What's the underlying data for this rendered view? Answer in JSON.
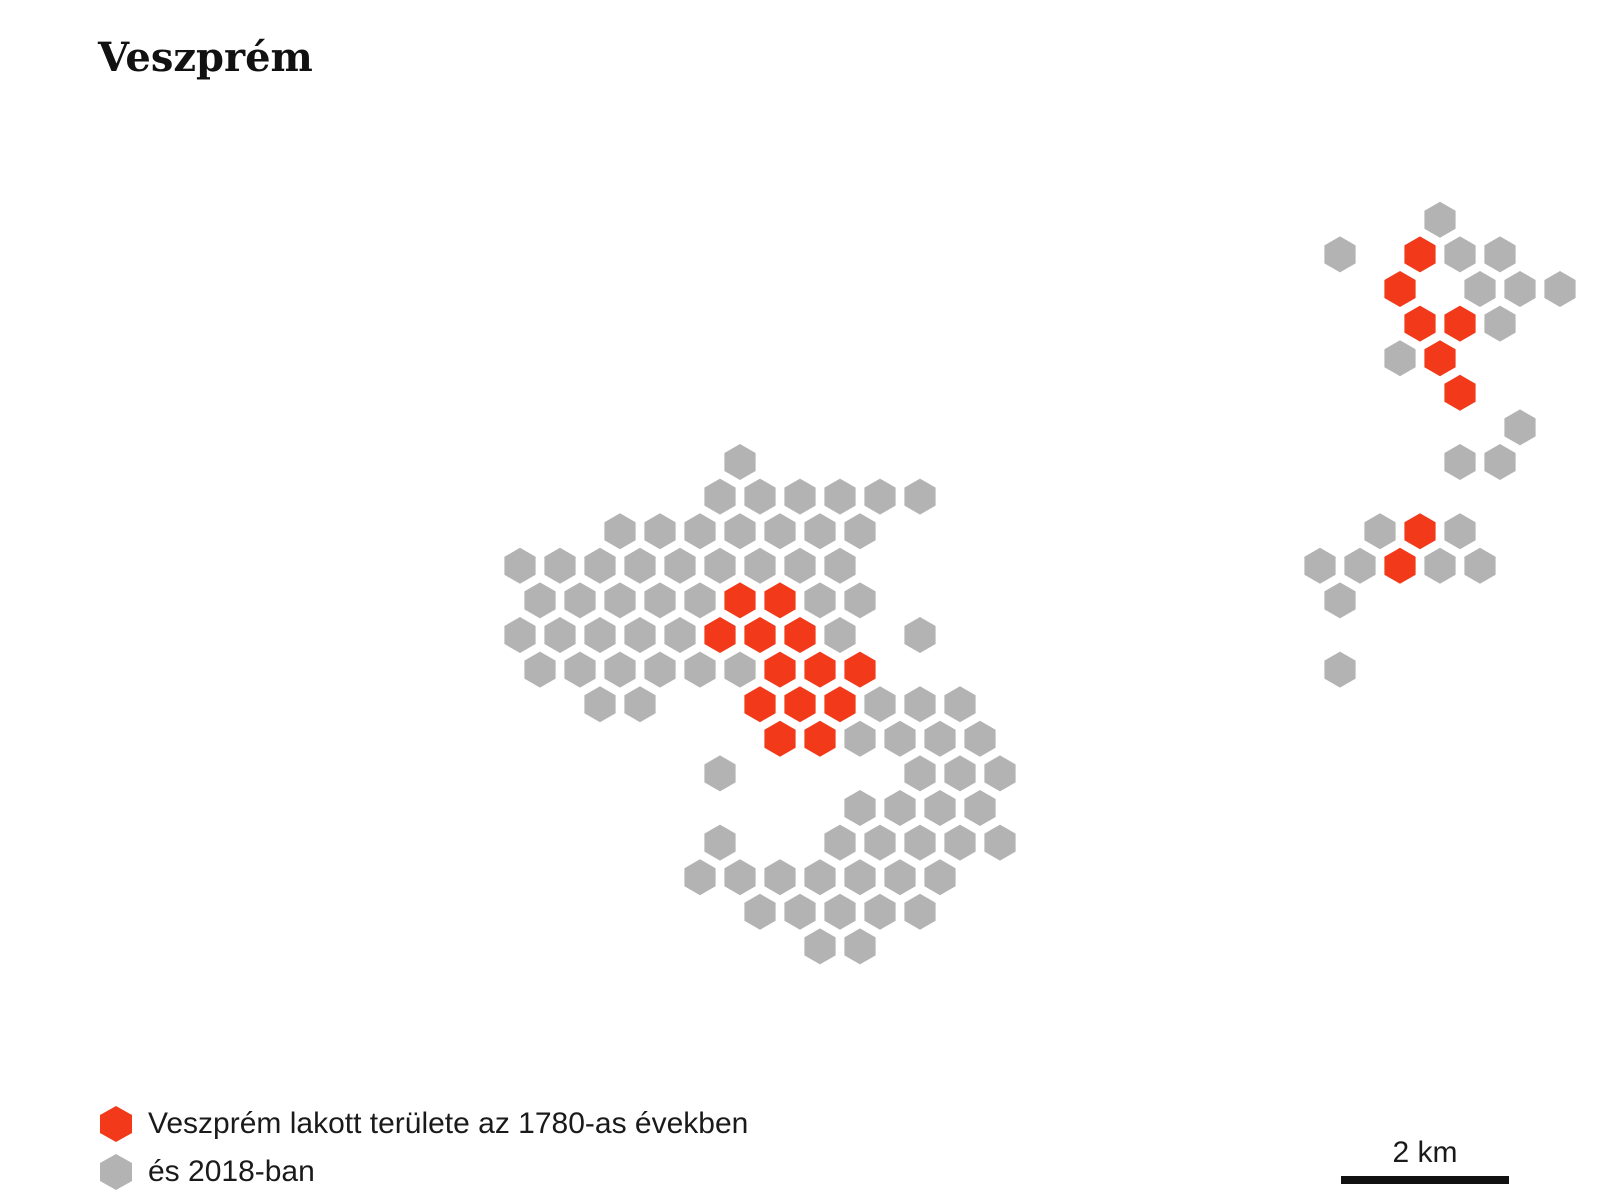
{
  "title": "Veszprém",
  "colors": {
    "settled_1780s": "#f2391a",
    "settled_2018": "#b3b3b3",
    "text": "#1a1a1a"
  },
  "legend": {
    "settled_1780s": "Veszprém lakott területe az 1780-as években",
    "settled_2018": "és 2018-ban"
  },
  "scale": {
    "label": "2 km"
  },
  "chart_data": {
    "type": "hexbin-map",
    "note_units": "cells indexed by hex grid column (col) and row (row)",
    "red_cells": [
      [
        24,
        4
      ],
      [
        23,
        5
      ],
      [
        24,
        6
      ],
      [
        25,
        6
      ],
      [
        24,
        7
      ],
      [
        25,
        8
      ],
      [
        24,
        12
      ],
      [
        23,
        13
      ],
      [
        7,
        14
      ],
      [
        8,
        14
      ],
      [
        6,
        15
      ],
      [
        7,
        15
      ],
      [
        8,
        15
      ],
      [
        8,
        16
      ],
      [
        9,
        16
      ],
      [
        10,
        16
      ],
      [
        7,
        17
      ],
      [
        8,
        17
      ],
      [
        9,
        17
      ],
      [
        8,
        18
      ],
      [
        9,
        18
      ]
    ],
    "gray_cells": [
      [
        24,
        3
      ],
      [
        22,
        4
      ],
      [
        25,
        4
      ],
      [
        26,
        4
      ],
      [
        25,
        5
      ],
      [
        26,
        5
      ],
      [
        27,
        5
      ],
      [
        26,
        6
      ],
      [
        23,
        7
      ],
      [
        24,
        7
      ],
      [
        26,
        9
      ],
      [
        25,
        10
      ],
      [
        26,
        10
      ],
      [
        23,
        12
      ],
      [
        25,
        12
      ],
      [
        24,
        13
      ],
      [
        25,
        13
      ],
      [
        21,
        13
      ],
      [
        22,
        13
      ],
      [
        22,
        14
      ],
      [
        22,
        16
      ],
      [
        7,
        10
      ],
      [
        6,
        11
      ],
      [
        7,
        11
      ],
      [
        8,
        11
      ],
      [
        9,
        11
      ],
      [
        10,
        11
      ],
      [
        11,
        11
      ],
      [
        4,
        12
      ],
      [
        5,
        12
      ],
      [
        6,
        12
      ],
      [
        7,
        12
      ],
      [
        8,
        12
      ],
      [
        9,
        12
      ],
      [
        10,
        12
      ],
      [
        1,
        13
      ],
      [
        2,
        13
      ],
      [
        3,
        13
      ],
      [
        4,
        13
      ],
      [
        5,
        13
      ],
      [
        6,
        13
      ],
      [
        7,
        13
      ],
      [
        8,
        13
      ],
      [
        9,
        13
      ],
      [
        2,
        14
      ],
      [
        3,
        14
      ],
      [
        4,
        14
      ],
      [
        5,
        14
      ],
      [
        6,
        14
      ],
      [
        7,
        14
      ],
      [
        8,
        14
      ],
      [
        9,
        14
      ],
      [
        10,
        14
      ],
      [
        1,
        15
      ],
      [
        2,
        15
      ],
      [
        3,
        15
      ],
      [
        4,
        15
      ],
      [
        5,
        15
      ],
      [
        6,
        15
      ],
      [
        7,
        15
      ],
      [
        8,
        15
      ],
      [
        9,
        15
      ],
      [
        11,
        15
      ],
      [
        2,
        16
      ],
      [
        3,
        16
      ],
      [
        4,
        16
      ],
      [
        5,
        16
      ],
      [
        6,
        16
      ],
      [
        7,
        16
      ],
      [
        8,
        16
      ],
      [
        9,
        16
      ],
      [
        10,
        16
      ],
      [
        3,
        17
      ],
      [
        4,
        17
      ],
      [
        9,
        17
      ],
      [
        10,
        17
      ],
      [
        11,
        17
      ],
      [
        12,
        17
      ],
      [
        10,
        18
      ],
      [
        11,
        18
      ],
      [
        12,
        18
      ],
      [
        13,
        18
      ],
      [
        6,
        19
      ],
      [
        11,
        19
      ],
      [
        12,
        19
      ],
      [
        13,
        19
      ],
      [
        10,
        20
      ],
      [
        11,
        20
      ],
      [
        12,
        20
      ],
      [
        13,
        20
      ],
      [
        6,
        21
      ],
      [
        9,
        21
      ],
      [
        10,
        21
      ],
      [
        11,
        21
      ],
      [
        12,
        21
      ],
      [
        13,
        21
      ],
      [
        6,
        22
      ],
      [
        7,
        22
      ],
      [
        8,
        22
      ],
      [
        9,
        22
      ],
      [
        10,
        22
      ],
      [
        11,
        22
      ],
      [
        12,
        22
      ],
      [
        7,
        23
      ],
      [
        8,
        23
      ],
      [
        9,
        23
      ],
      [
        10,
        23
      ],
      [
        11,
        23
      ],
      [
        9,
        24
      ],
      [
        10,
        24
      ]
    ]
  }
}
